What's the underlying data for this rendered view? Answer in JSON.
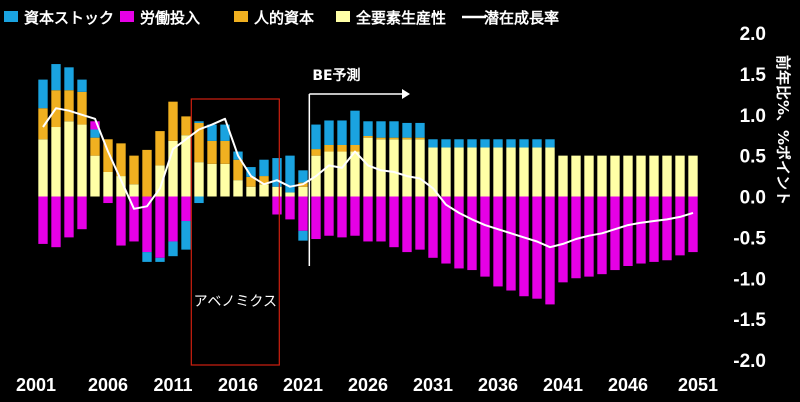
{
  "chart_data": {
    "type": "bar",
    "stacked": true,
    "title": "",
    "ylabel": "前年比%、%ポイント",
    "ylim": [
      -2.0,
      2.0
    ],
    "yticks": [
      2.0,
      1.5,
      1.0,
      0.5,
      0.0,
      -0.5,
      -1.0,
      -1.5,
      -2.0
    ],
    "ytick_labels": [
      "2.0",
      "1.5",
      "1.0",
      "0.5",
      "0.0",
      "-0.5",
      "-1.0",
      "-1.5",
      "-2.0"
    ],
    "xtick_labels": [
      "2001",
      "2006",
      "2011",
      "2016",
      "2021",
      "2026",
      "2031",
      "2036",
      "2041",
      "2046",
      "2051"
    ],
    "legend_position": "top",
    "colors": {
      "capital": "#1aa3e0",
      "labor": "#e600e6",
      "human": "#f0b020",
      "tfp": "#ffffa6",
      "potential": "#ffffff",
      "abenomics_box": "#d02010"
    },
    "legend": [
      {
        "key": "capital",
        "label": "資本ストック"
      },
      {
        "key": "labor",
        "label": "労働投入"
      },
      {
        "key": "human",
        "label": "人的資本"
      },
      {
        "key": "tfp",
        "label": "全要素生産性"
      },
      {
        "key": "potential",
        "label": "潜在成長率"
      }
    ],
    "annotations": {
      "forecast_label": "BE予測",
      "abenomics_label": "アベノミクス"
    },
    "abenomics_range": [
      2013,
      2020
    ],
    "forecast_start": 2022,
    "years": [
      2001,
      2002,
      2003,
      2004,
      2005,
      2006,
      2007,
      2008,
      2009,
      2010,
      2011,
      2012,
      2013,
      2014,
      2015,
      2016,
      2017,
      2018,
      2019,
      2020,
      2021,
      2022,
      2023,
      2024,
      2025,
      2026,
      2027,
      2028,
      2029,
      2030,
      2031,
      2032,
      2033,
      2034,
      2035,
      2036,
      2037,
      2038,
      2039,
      2040,
      2041,
      2042,
      2043,
      2044,
      2045,
      2046,
      2047,
      2048,
      2049,
      2050,
      2051
    ],
    "series": [
      {
        "name": "全要素生産性",
        "key": "tfp",
        "values": [
          0.7,
          0.85,
          0.92,
          0.88,
          0.5,
          0.3,
          0.25,
          0.15,
          0.0,
          0.38,
          0.68,
          0.75,
          0.42,
          0.4,
          0.4,
          0.2,
          0.12,
          0.15,
          0.12,
          0.05,
          0.12,
          0.5,
          0.55,
          0.55,
          0.55,
          0.72,
          0.7,
          0.7,
          0.7,
          0.7,
          0.6,
          0.6,
          0.6,
          0.6,
          0.6,
          0.6,
          0.6,
          0.6,
          0.6,
          0.6,
          0.5,
          0.5,
          0.5,
          0.5,
          0.5,
          0.5,
          0.5,
          0.5,
          0.5,
          0.5,
          0.5
        ]
      },
      {
        "name": "人的資本",
        "key": "human",
        "values": [
          0.38,
          0.45,
          0.38,
          0.4,
          0.22,
          0.4,
          0.4,
          0.35,
          0.57,
          0.42,
          0.48,
          0.23,
          0.48,
          0.28,
          0.28,
          0.25,
          0.12,
          0.1,
          0.0,
          0.0,
          0.05,
          0.08,
          0.08,
          0.08,
          0.08,
          0.02,
          0.02,
          0.02,
          0.02,
          0.02,
          0.0,
          0.0,
          0.0,
          0.0,
          0.0,
          0.0,
          0.0,
          0.0,
          0.0,
          0.0,
          0.0,
          0.0,
          0.0,
          0.0,
          0.0,
          0.0,
          0.0,
          0.0,
          0.0,
          0.0,
          0.0
        ]
      },
      {
        "name": "資本ストック",
        "key": "capital",
        "values": [
          0.35,
          0.32,
          0.28,
          0.15,
          0.1,
          0.0,
          0.0,
          0.0,
          0.0,
          0.0,
          0.0,
          0.0,
          0.02,
          0.2,
          0.2,
          0.1,
          0.12,
          0.2,
          0.35,
          0.45,
          0.15,
          0.3,
          0.3,
          0.3,
          0.42,
          0.18,
          0.2,
          0.2,
          0.18,
          0.18,
          0.1,
          0.1,
          0.1,
          0.1,
          0.1,
          0.1,
          0.1,
          0.1,
          0.1,
          0.1,
          0.0,
          0.0,
          0.0,
          0.0,
          0.0,
          0.0,
          0.0,
          0.0,
          0.0,
          0.0,
          0.0
        ]
      },
      {
        "name": "労働投入",
        "key": "labor",
        "values": [
          -0.58,
          -0.62,
          -0.5,
          -0.4,
          0.1,
          -0.08,
          -0.6,
          -0.55,
          -0.68,
          -0.75,
          -0.55,
          -0.3,
          0.0,
          0.0,
          0.0,
          0.0,
          0.0,
          0.0,
          -0.22,
          -0.28,
          -0.42,
          -0.52,
          -0.48,
          -0.5,
          -0.48,
          -0.55,
          -0.55,
          -0.62,
          -0.68,
          -0.65,
          -0.75,
          -0.82,
          -0.88,
          -0.9,
          -0.98,
          -1.1,
          -1.15,
          -1.22,
          -1.25,
          -1.32,
          -1.05,
          -1.0,
          -0.98,
          -0.95,
          -0.9,
          -0.85,
          -0.82,
          -0.8,
          -0.78,
          -0.72,
          -0.68
        ]
      },
      {
        "name": "資本ストック(負)",
        "key": "capital_neg",
        "values": [
          0,
          0,
          0,
          0,
          0,
          0,
          0,
          0,
          -0.12,
          -0.05,
          -0.18,
          -0.35,
          -0.08,
          0,
          0,
          0,
          0,
          0,
          0,
          0,
          -0.12,
          0,
          0,
          0,
          0,
          0,
          0,
          0,
          0,
          0,
          0,
          0,
          0,
          0,
          0,
          0,
          0,
          0,
          0,
          0,
          0,
          0,
          0,
          0,
          0,
          0,
          0,
          0,
          0,
          0,
          0
        ]
      }
    ],
    "potential_line": [
      0.85,
      1.08,
      1.05,
      1.0,
      0.95,
      0.55,
      0.2,
      -0.15,
      -0.12,
      0.1,
      0.58,
      0.7,
      0.82,
      0.88,
      0.95,
      0.5,
      0.25,
      0.15,
      0.2,
      0.12,
      0.15,
      0.25,
      0.38,
      0.35,
      0.55,
      0.38,
      0.32,
      0.3,
      0.25,
      0.22,
      0.1,
      -0.1,
      -0.2,
      -0.28,
      -0.35,
      -0.4,
      -0.45,
      -0.5,
      -0.55,
      -0.62,
      -0.58,
      -0.52,
      -0.48,
      -0.45,
      -0.4,
      -0.35,
      -0.32,
      -0.3,
      -0.28,
      -0.25,
      -0.2
    ]
  }
}
